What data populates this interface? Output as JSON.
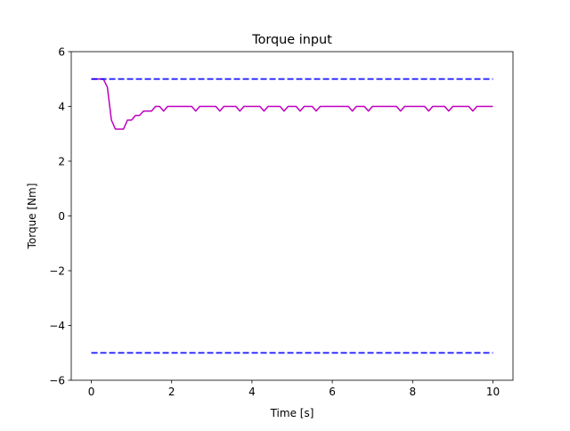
{
  "chart_data": {
    "type": "line",
    "title": "Torque input",
    "xlabel": "Time [s]",
    "ylabel": "Torque [Nm]",
    "xlim": [
      -0.5,
      10.5
    ],
    "ylim": [
      -6,
      6
    ],
    "xticks": [
      0,
      2,
      4,
      6,
      8,
      10
    ],
    "yticks": [
      -6,
      -4,
      -2,
      0,
      2,
      4,
      6
    ],
    "grid": false,
    "series": [
      {
        "role": "signal",
        "color": "#bf00bf",
        "style": "solid",
        "x": [
          0,
          0.1,
          0.2,
          0.3,
          0.4,
          0.5,
          0.6,
          0.7,
          0.8,
          0.9,
          1.0,
          1.1,
          1.2,
          1.3,
          1.4,
          1.5,
          1.6,
          1.7,
          1.8,
          1.9,
          2.0,
          2.1,
          2.2,
          2.3,
          2.4,
          2.5,
          2.6,
          2.7,
          2.8,
          2.9,
          3.0,
          3.1,
          3.2,
          3.3,
          3.4,
          3.5,
          3.6,
          3.7,
          3.8,
          3.9,
          4.0,
          4.1,
          4.2,
          4.3,
          4.4,
          4.5,
          4.6,
          4.7,
          4.8,
          4.9,
          5.0,
          5.1,
          5.2,
          5.3,
          5.4,
          5.5,
          5.6,
          5.7,
          5.8,
          5.9,
          6.0,
          6.1,
          6.2,
          6.3,
          6.4,
          6.5,
          6.6,
          6.7,
          6.8,
          6.9,
          7.0,
          7.1,
          7.2,
          7.3,
          7.4,
          7.5,
          7.6,
          7.7,
          7.8,
          7.9,
          8.0,
          8.1,
          8.2,
          8.3,
          8.4,
          8.5,
          8.6,
          8.7,
          8.8,
          8.9,
          9.0,
          9.1,
          9.2,
          9.3,
          9.4,
          9.5,
          9.6,
          9.7,
          9.8,
          9.9,
          10.0
        ],
        "y": [
          5.0,
          5.0,
          5.0,
          5.0,
          4.7,
          3.5,
          3.17,
          3.17,
          3.17,
          3.5,
          3.5,
          3.67,
          3.67,
          3.83,
          3.83,
          3.83,
          4.0,
          4.0,
          3.83,
          4.0,
          4.0,
          4.0,
          4.0,
          4.0,
          4.0,
          4.0,
          3.83,
          4.0,
          4.0,
          4.0,
          4.0,
          4.0,
          3.83,
          4.0,
          4.0,
          4.0,
          4.0,
          3.83,
          4.0,
          4.0,
          4.0,
          4.0,
          4.0,
          3.83,
          4.0,
          4.0,
          4.0,
          4.0,
          3.83,
          4.0,
          4.0,
          4.0,
          3.83,
          4.0,
          4.0,
          4.0,
          3.83,
          4.0,
          4.0,
          4.0,
          4.0,
          4.0,
          4.0,
          4.0,
          4.0,
          3.83,
          4.0,
          4.0,
          4.0,
          3.83,
          4.0,
          4.0,
          4.0,
          4.0,
          4.0,
          4.0,
          4.0,
          3.83,
          4.0,
          4.0,
          4.0,
          4.0,
          4.0,
          4.0,
          3.83,
          4.0,
          4.0,
          4.0,
          4.0,
          3.83,
          4.0,
          4.0,
          4.0,
          4.0,
          4.0,
          3.83,
          4.0,
          4.0,
          4.0,
          4.0,
          4.0
        ]
      },
      {
        "role": "upper-limit",
        "color": "#0000ff",
        "style": "dashed",
        "x": [
          0,
          10
        ],
        "y": [
          5,
          5
        ]
      },
      {
        "role": "lower-limit",
        "color": "#0000ff",
        "style": "dashed",
        "x": [
          0,
          10
        ],
        "y": [
          -5,
          -5
        ]
      }
    ]
  }
}
